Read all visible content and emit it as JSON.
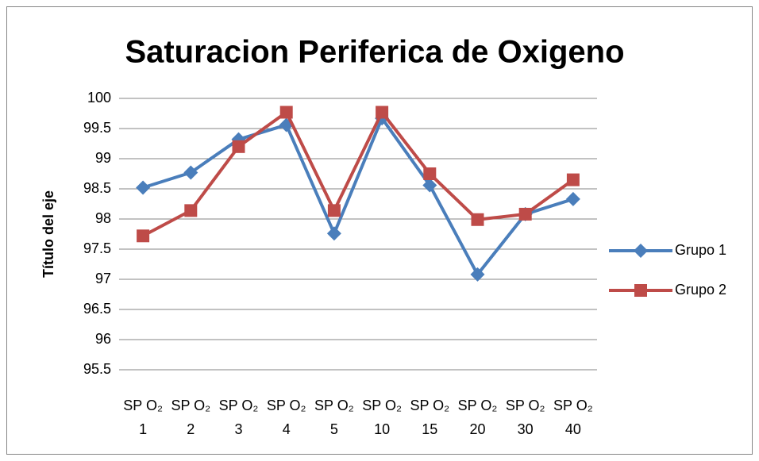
{
  "chart_data": {
    "type": "line",
    "title": "Saturacion Periferica de Oxigeno",
    "y_label": "Título del eje",
    "categories": [
      "SP O₂ 1",
      "SP O₂ 2",
      "SP O₂ 3",
      "SP O₂ 4",
      "SP O₂ 5",
      "SP O₂ 10",
      "SP O₂ 15",
      "SP O₂ 20",
      "SP O₂ 30",
      "SP O₂ 40"
    ],
    "series": [
      {
        "name": "Grupo 1",
        "color": "#4a7ebb",
        "marker": "diamond",
        "values": [
          98.52,
          98.77,
          99.32,
          99.56,
          97.76,
          99.67,
          98.56,
          97.08,
          98.08,
          98.33
        ]
      },
      {
        "name": "Grupo 2",
        "color": "#be4b48",
        "marker": "square",
        "values": [
          97.72,
          98.14,
          99.2,
          99.77,
          98.14,
          99.77,
          98.75,
          97.99,
          98.08,
          98.65
        ]
      }
    ],
    "ylim": [
      95.5,
      100
    ],
    "yticks": [
      95.5,
      96,
      96.5,
      97,
      97.5,
      98,
      98.5,
      99,
      99.5,
      100
    ],
    "grid": true,
    "legend": "right"
  }
}
